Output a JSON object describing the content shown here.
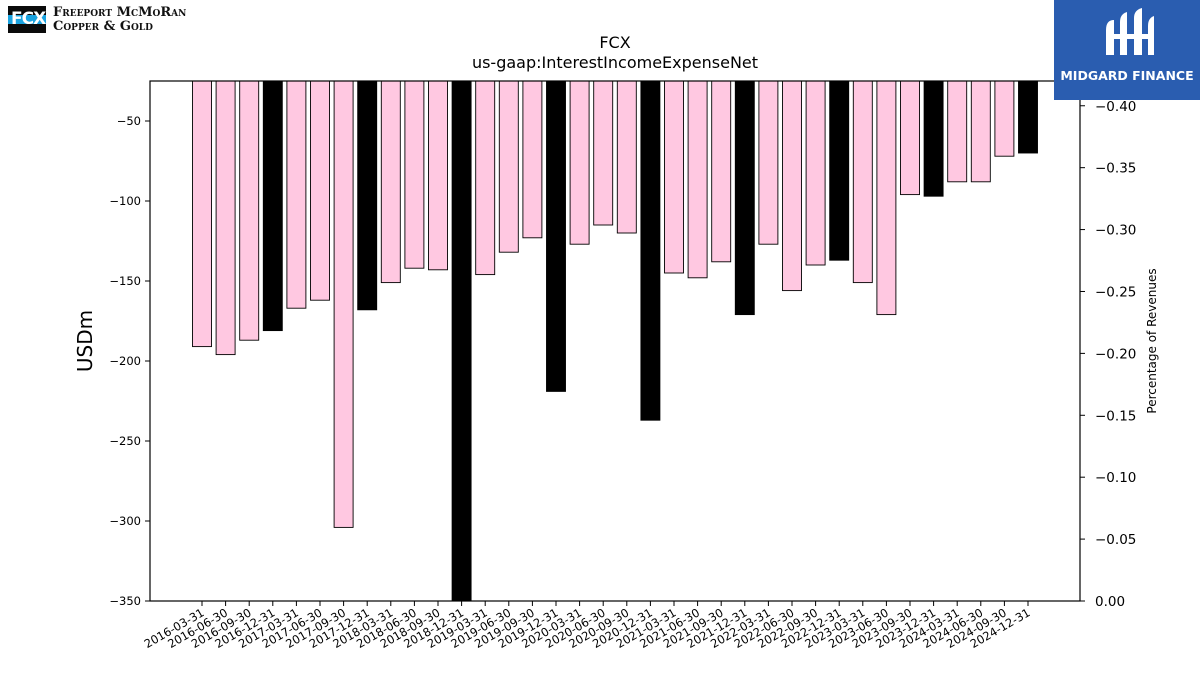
{
  "logos": {
    "left": {
      "mark_text": "FCX",
      "line1": "Freeport McMoRan",
      "line2": "Copper & Gold"
    },
    "right": {
      "text": "MIDGARD FINANCE"
    }
  },
  "chart_data": {
    "type": "bar",
    "title": "FCX",
    "subtitle": "us-gaap:InterestIncomeExpenseNet",
    "ylabel": "USDm",
    "y2label": "Percentage of Revenues",
    "ylim": [
      -350,
      -25
    ],
    "y2lim": [
      0.0,
      -0.42
    ],
    "yticks": [
      -50,
      -100,
      -150,
      -200,
      -250,
      -300,
      -350
    ],
    "y2ticks": [
      -0.4,
      -0.35,
      -0.3,
      -0.25,
      -0.2,
      -0.15,
      -0.1,
      -0.05,
      0.0
    ],
    "colors": {
      "quarter": "#ffc8e1",
      "year_end": "#000000",
      "edge": "#000000"
    },
    "categories": [
      "2016-03-31",
      "2016-06-30",
      "2016-09-30",
      "2016-12-31",
      "2017-03-31",
      "2017-06-30",
      "2017-09-30",
      "2017-12-31",
      "2018-03-31",
      "2018-06-30",
      "2018-09-30",
      "2018-12-31",
      "2019-03-31",
      "2019-06-30",
      "2019-09-30",
      "2019-12-31",
      "2020-03-31",
      "2020-06-30",
      "2020-09-30",
      "2020-12-31",
      "2021-03-31",
      "2021-06-30",
      "2021-09-30",
      "2021-12-31",
      "2022-03-31",
      "2022-06-30",
      "2022-09-30",
      "2022-12-31",
      "2023-03-31",
      "2023-06-30",
      "2023-09-30",
      "2023-12-31",
      "2024-03-31",
      "2024-06-30",
      "2024-09-30",
      "2024-12-31"
    ],
    "values": [
      -191,
      -196,
      -187,
      -181,
      -167,
      -162,
      -304,
      -168,
      -151,
      -142,
      -143,
      -365,
      -146,
      -132,
      -123,
      -219,
      -127,
      -115,
      -120,
      -237,
      -145,
      -148,
      -138,
      -171,
      -127,
      -156,
      -140,
      -137,
      -151,
      -171,
      -96,
      -97,
      -88,
      -88,
      -72,
      -70
    ],
    "year_end": [
      false,
      false,
      false,
      true,
      false,
      false,
      false,
      true,
      false,
      false,
      false,
      true,
      false,
      false,
      false,
      true,
      false,
      false,
      false,
      true,
      false,
      false,
      false,
      true,
      false,
      false,
      false,
      true,
      false,
      false,
      false,
      true,
      false,
      false,
      false,
      true
    ]
  }
}
